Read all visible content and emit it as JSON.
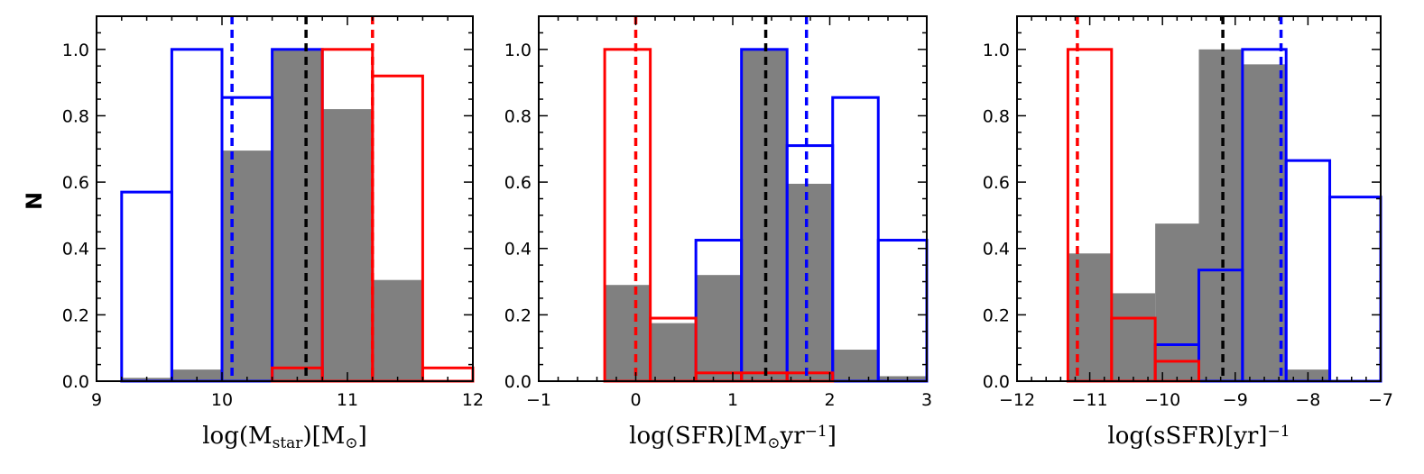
{
  "ylabel": "N",
  "chart_data": [
    {
      "type": "bar",
      "xlabel": "log(M_star)[M_⊙]",
      "xlabel_parts": {
        "pre": "log(M",
        "sub": "star",
        "post": ")[M",
        "sub2": "⊙",
        "post2": "]"
      },
      "xlim": [
        9,
        12
      ],
      "ylim": [
        0,
        1.1
      ],
      "xticks": [
        9,
        10,
        11,
        12
      ],
      "xtick_labels": [
        "9",
        "10",
        "11",
        "12"
      ],
      "yticks": [
        0.0,
        0.2,
        0.4,
        0.6,
        0.8,
        1.0
      ],
      "ytick_labels": [
        "0.0",
        "0.2",
        "0.4",
        "0.6",
        "0.8",
        "1.0"
      ],
      "series": [
        {
          "name": "all (filled gray)",
          "color": "#808080",
          "style": "filled",
          "edges": [
            9.2,
            9.6,
            10.0,
            10.4,
            10.8,
            11.2,
            11.6
          ],
          "values": [
            0.01,
            0.035,
            0.695,
            1.0,
            0.82,
            0.305
          ]
        },
        {
          "name": "blue",
          "color": "#0000ff",
          "style": "step",
          "edges": [
            9.2,
            9.6,
            10.0,
            10.4,
            10.8
          ],
          "values": [
            0.57,
            1.0,
            0.855,
            1.0
          ]
        },
        {
          "name": "red",
          "color": "#ff0000",
          "style": "step",
          "edges": [
            10.4,
            10.8,
            11.2,
            11.6,
            12.0
          ],
          "values": [
            0.04,
            1.0,
            0.92,
            0.04
          ]
        }
      ],
      "vlines": [
        {
          "x": 10.08,
          "color": "#0000ff"
        },
        {
          "x": 10.67,
          "color": "#000000"
        },
        {
          "x": 11.2,
          "color": "#ff0000"
        }
      ]
    },
    {
      "type": "bar",
      "xlabel": "log(SFR)[M_⊙yr^-1]",
      "xlabel_parts": {
        "pre": "log(SFR)[M",
        "sub": "⊙",
        "post": "yr",
        "sup": "−1",
        "post2": "]"
      },
      "xlim": [
        -1,
        3
      ],
      "ylim": [
        0,
        1.1
      ],
      "xticks": [
        -1,
        0,
        1,
        2,
        3
      ],
      "xtick_labels": [
        "−1",
        "0",
        "1",
        "2",
        "3"
      ],
      "yticks": [
        0.0,
        0.2,
        0.4,
        0.6,
        0.8,
        1.0
      ],
      "ytick_labels": [
        "0.0",
        "0.2",
        "0.4",
        "0.6",
        "0.8",
        "1.0"
      ],
      "series": [
        {
          "name": "all (filled gray)",
          "color": "#808080",
          "style": "filled",
          "edges": [
            -0.32,
            0.15,
            0.62,
            1.09,
            1.56,
            2.03,
            2.5,
            3.0
          ],
          "values": [
            0.29,
            0.175,
            0.32,
            1.0,
            0.595,
            0.095,
            0.015
          ]
        },
        {
          "name": "blue",
          "color": "#0000ff",
          "style": "step",
          "edges": [
            0.62,
            1.09,
            1.56,
            2.03,
            2.5,
            3.0
          ],
          "values": [
            0.425,
            1.0,
            0.71,
            0.855,
            0.425
          ]
        },
        {
          "name": "red",
          "color": "#ff0000",
          "style": "step",
          "edges": [
            -0.32,
            0.15,
            0.62,
            1.09,
            1.56,
            2.03
          ],
          "values": [
            1.0,
            0.19,
            0.025,
            0.025,
            0.025
          ]
        }
      ],
      "vlines": [
        {
          "x": 0.0,
          "color": "#ff0000"
        },
        {
          "x": 1.34,
          "color": "#000000"
        },
        {
          "x": 1.76,
          "color": "#0000ff"
        }
      ]
    },
    {
      "type": "bar",
      "xlabel": "log(sSFR)[yr^-1]",
      "xlabel_parts": {
        "pre": "log(sSFR)[yr",
        "sup": "−1",
        "post": "]"
      },
      "xlim": [
        -12,
        -7
      ],
      "ylim": [
        0,
        1.1
      ],
      "xticks": [
        -12,
        -11,
        -10,
        -9,
        -8,
        -7
      ],
      "xtick_labels": [
        "−12",
        "−11",
        "−10",
        "−9",
        "−8",
        "−7"
      ],
      "yticks": [
        0.0,
        0.2,
        0.4,
        0.6,
        0.8,
        1.0
      ],
      "ytick_labels": [
        "0.0",
        "0.2",
        "0.4",
        "0.6",
        "0.8",
        "1.0"
      ],
      "series": [
        {
          "name": "all (filled gray)",
          "color": "#808080",
          "style": "filled",
          "edges": [
            -11.3,
            -10.7,
            -10.1,
            -9.5,
            -8.9,
            -8.3,
            -7.7
          ],
          "values": [
            0.385,
            0.265,
            0.475,
            1.0,
            0.955,
            0.035
          ]
        },
        {
          "name": "blue",
          "color": "#0000ff",
          "style": "step",
          "edges": [
            -10.1,
            -9.5,
            -8.9,
            -8.3,
            -7.7,
            -7.0
          ],
          "values": [
            0.11,
            0.335,
            1.0,
            0.665,
            0.555
          ]
        },
        {
          "name": "red",
          "color": "#ff0000",
          "style": "step",
          "edges": [
            -11.3,
            -10.7,
            -10.1,
            -9.5
          ],
          "values": [
            1.0,
            0.19,
            0.06
          ]
        }
      ],
      "vlines": [
        {
          "x": -11.17,
          "color": "#ff0000"
        },
        {
          "x": -9.17,
          "color": "#000000"
        },
        {
          "x": -8.37,
          "color": "#0000ff"
        }
      ]
    }
  ]
}
